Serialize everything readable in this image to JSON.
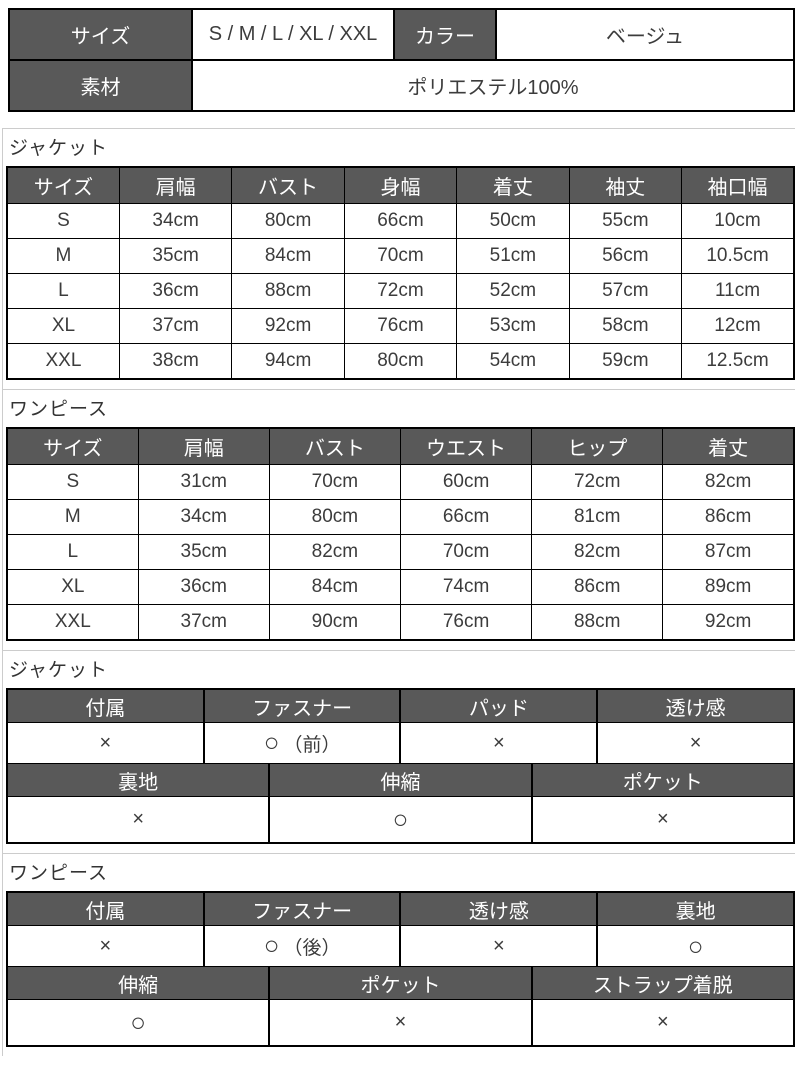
{
  "theme": {
    "header_bg": "#595959",
    "header_text": "#ffffff",
    "border_color": "#000000",
    "guide_line": "#cccccc"
  },
  "info": {
    "size_label": "サイズ",
    "size_value": "S / M / L / XL / XXL",
    "color_label": "カラー",
    "color_value": "ベージュ",
    "material_label": "素材",
    "material_value": "ポリエステル100%"
  },
  "jacket_size": {
    "section_title": "ジャケット",
    "headers": [
      "サイズ",
      "肩幅",
      "バスト",
      "身幅",
      "着丈",
      "袖丈",
      "袖口幅"
    ],
    "rows": [
      [
        "S",
        "34cm",
        "80cm",
        "66cm",
        "50cm",
        "55cm",
        "10cm"
      ],
      [
        "M",
        "35cm",
        "84cm",
        "70cm",
        "51cm",
        "56cm",
        "10.5cm"
      ],
      [
        "L",
        "36cm",
        "88cm",
        "72cm",
        "52cm",
        "57cm",
        "11cm"
      ],
      [
        "XL",
        "37cm",
        "92cm",
        "76cm",
        "53cm",
        "58cm",
        "12cm"
      ],
      [
        "XXL",
        "38cm",
        "94cm",
        "80cm",
        "54cm",
        "59cm",
        "12.5cm"
      ]
    ]
  },
  "onepiece_size": {
    "section_title": "ワンピース",
    "headers": [
      "サイズ",
      "肩幅",
      "バスト",
      "ウエスト",
      "ヒップ",
      "着丈"
    ],
    "rows": [
      [
        "S",
        "31cm",
        "70cm",
        "60cm",
        "72cm",
        "82cm"
      ],
      [
        "M",
        "34cm",
        "80cm",
        "66cm",
        "81cm",
        "86cm"
      ],
      [
        "L",
        "35cm",
        "82cm",
        "70cm",
        "82cm",
        "87cm"
      ],
      [
        "XL",
        "36cm",
        "84cm",
        "74cm",
        "86cm",
        "89cm"
      ],
      [
        "XXL",
        "37cm",
        "90cm",
        "76cm",
        "88cm",
        "92cm"
      ]
    ]
  },
  "jacket_features": {
    "section_title": "ジャケット",
    "row1_headers": [
      "付属",
      "ファスナー",
      "パッド",
      "透け感"
    ],
    "row1_values": [
      {
        "mark": "×",
        "note": ""
      },
      {
        "mark": "○",
        "note": "（前）"
      },
      {
        "mark": "×",
        "note": ""
      },
      {
        "mark": "×",
        "note": ""
      }
    ],
    "row2_headers": [
      "裏地",
      "伸縮",
      "ポケット"
    ],
    "row2_values": [
      "×",
      "○",
      "×"
    ]
  },
  "onepiece_features": {
    "section_title": "ワンピース",
    "row1_headers": [
      "付属",
      "ファスナー",
      "透け感",
      "裏地"
    ],
    "row1_values": [
      {
        "mark": "×",
        "note": ""
      },
      {
        "mark": "○",
        "note": "（後）"
      },
      {
        "mark": "×",
        "note": ""
      },
      {
        "mark": "○",
        "note": ""
      }
    ],
    "row2_headers": [
      "伸縮",
      "ポケット",
      "ストラップ着脱"
    ],
    "row2_values": [
      "○",
      "×",
      "×"
    ]
  }
}
